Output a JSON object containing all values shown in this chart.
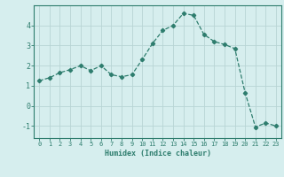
{
  "x": [
    0,
    1,
    2,
    3,
    4,
    5,
    6,
    7,
    8,
    9,
    10,
    11,
    12,
    13,
    14,
    15,
    16,
    17,
    18,
    19,
    20,
    21,
    22,
    23
  ],
  "y": [
    1.25,
    1.4,
    1.65,
    1.8,
    2.0,
    1.75,
    2.0,
    1.55,
    1.45,
    1.55,
    2.3,
    3.1,
    3.75,
    4.0,
    4.6,
    4.5,
    3.55,
    3.2,
    3.05,
    2.85,
    0.65,
    -1.05,
    -0.85,
    -1.0
  ],
  "xlabel": "Humidex (Indice chaleur)",
  "ylim": [
    -1.6,
    5.0
  ],
  "xlim": [
    -0.5,
    23.5
  ],
  "line_color": "#2e7d6e",
  "marker": "D",
  "marker_size": 2.2,
  "bg_color": "#d6eeee",
  "grid_color": "#b8d4d4",
  "tick_color": "#2e7d6e",
  "spine_color": "#2e7d6e",
  "label_color": "#2e7d6e",
  "yticks": [
    -1,
    0,
    1,
    2,
    3,
    4
  ],
  "xticks": [
    0,
    1,
    2,
    3,
    4,
    5,
    6,
    7,
    8,
    9,
    10,
    11,
    12,
    13,
    14,
    15,
    16,
    17,
    18,
    19,
    20,
    21,
    22,
    23
  ]
}
